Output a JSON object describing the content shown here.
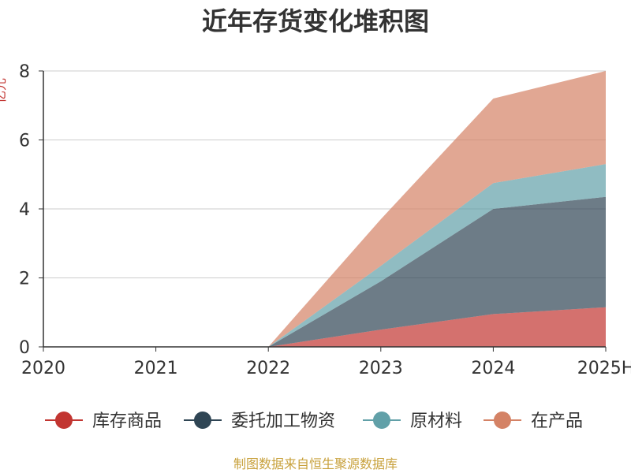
{
  "chart_data": {
    "type": "area",
    "stacked": true,
    "title": "近年存货变化堆积图",
    "xlabel": "",
    "ylabel": "亿元",
    "categories": [
      "2020",
      "2021",
      "2022",
      "2023",
      "2024",
      "2025H"
    ],
    "ylim": [
      0,
      8
    ],
    "yticks": [
      0,
      2,
      4,
      6,
      8
    ],
    "grid": true,
    "legend_position": "bottom",
    "series": [
      {
        "name": "库存商品",
        "color": "#c23531",
        "values": [
          0,
          0,
          0,
          0.5,
          0.95,
          1.15
        ]
      },
      {
        "name": "委托加工物资",
        "color": "#2f4554",
        "values": [
          0,
          0,
          0,
          1.4,
          3.05,
          3.2
        ]
      },
      {
        "name": "原材料",
        "color": "#61a0a8",
        "values": [
          0,
          0,
          0,
          0.45,
          0.75,
          0.95
        ]
      },
      {
        "name": "在产品",
        "color": "#d48265",
        "values": [
          0,
          0,
          0,
          1.35,
          2.45,
          2.7
        ]
      }
    ]
  },
  "source_text": "制图数据来自恒生聚源数据库"
}
